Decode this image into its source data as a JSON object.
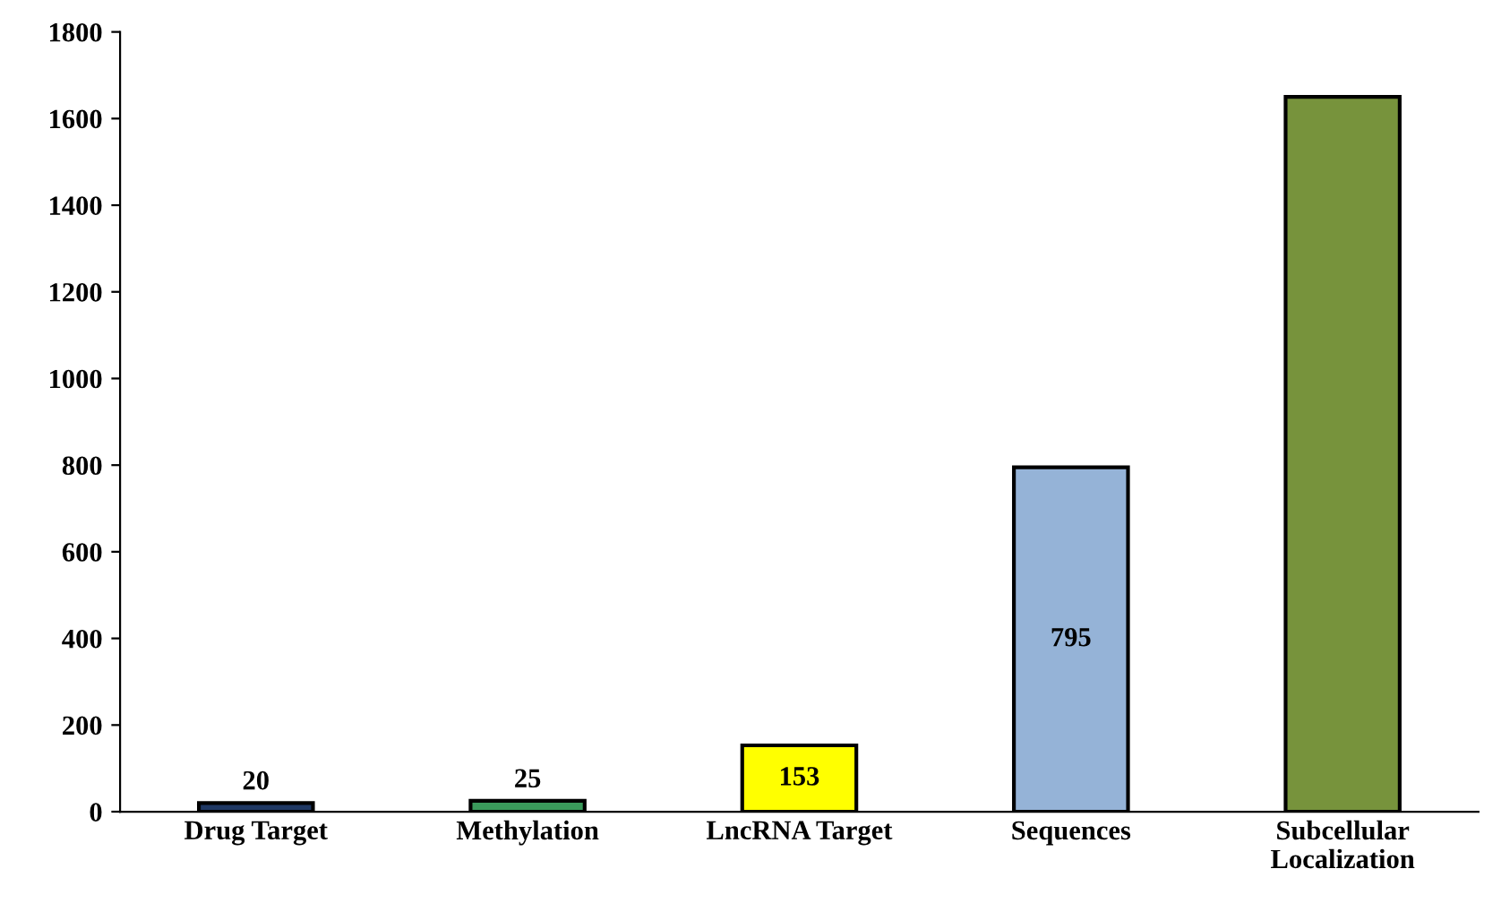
{
  "chart_data": {
    "type": "bar",
    "categories": [
      "Drug Target",
      "Methylation",
      "LncRNA Target",
      "Sequences",
      "Subcellular\nLocalization"
    ],
    "values": [
      20,
      25,
      153,
      795,
      1650
    ],
    "colors": [
      "#1f3864",
      "#3a9a5b",
      "#ffff00",
      "#95b3d7",
      "#77933c"
    ],
    "value_labels": [
      "20",
      "25",
      "153",
      "795",
      null
    ],
    "ylim": [
      0,
      1800
    ],
    "yticks": [
      0,
      200,
      400,
      600,
      800,
      1000,
      1200,
      1400,
      1600,
      1800
    ],
    "grid": false,
    "legend": false
  }
}
